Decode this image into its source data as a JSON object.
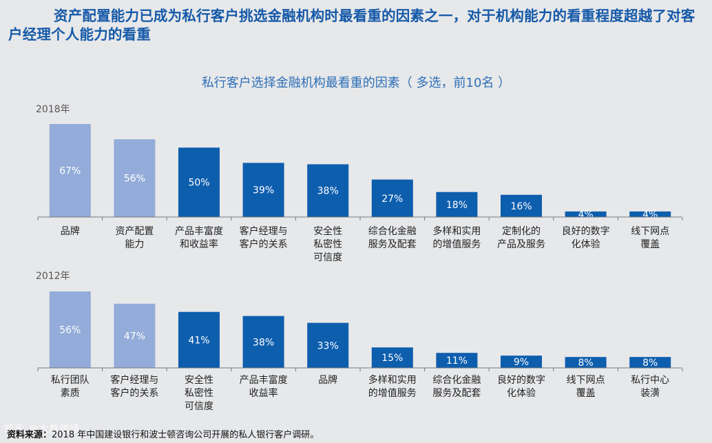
{
  "headline": "资产配置能力已成为私行客户挑选金融机构时最看重的因素之一，对于机构能力的看重程度超越了对客户经理个人能力的看重",
  "colors": {
    "light_bar": "#93acd9",
    "dark_bar": "#0e5eae",
    "title_blue": "#1559a8"
  },
  "chart_data": [
    {
      "type": "bar",
      "title": "私行客户选择金融机构最看重的因素（ 多选，前10名 ）",
      "panel_label": "2018年",
      "categories": [
        [
          "品牌"
        ],
        [
          "资产配置",
          "能力"
        ],
        [
          "产品丰富度",
          "和收益率"
        ],
        [
          "客户经理与",
          "客户的关系"
        ],
        [
          "安全性",
          "私密性",
          "可信度"
        ],
        [
          "综合化金融",
          "服务及配套"
        ],
        [
          "多样和实用",
          "的增值服务"
        ],
        [
          "定制化的",
          "产品及服务"
        ],
        [
          "良好的数字",
          "化体验"
        ],
        [
          "线下网点",
          "覆盖"
        ]
      ],
      "values": [
        67,
        56,
        50,
        39,
        38,
        27,
        18,
        16,
        4,
        4
      ],
      "value_labels": [
        "67%",
        "56%",
        "50%",
        "39%",
        "38%",
        "27%",
        "18%",
        "16%",
        "4%",
        "4%"
      ],
      "highlight_count": 2,
      "ylim": [
        0,
        70
      ]
    },
    {
      "type": "bar",
      "panel_label": "2012年",
      "categories": [
        [
          "私行团队",
          "素质"
        ],
        [
          "客户经理与",
          "客户的关系"
        ],
        [
          "安全性",
          "私密性",
          "可信度"
        ],
        [
          "产品丰富度",
          "收益率"
        ],
        [
          "品牌"
        ],
        [
          "多样和实用",
          "的增值服务"
        ],
        [
          "综合化金融",
          "服务及配套"
        ],
        [
          "良好的数字",
          "化体验"
        ],
        [
          "线下网点",
          "覆盖"
        ],
        [
          "私行中心",
          "装潢"
        ]
      ],
      "values": [
        56,
        47,
        41,
        38,
        33,
        15,
        11,
        9,
        8,
        8
      ],
      "value_labels": [
        "56%",
        "47%",
        "41%",
        "38%",
        "33%",
        "15%",
        "11%",
        "9%",
        "8%",
        "8%"
      ],
      "highlight_count": 2,
      "ylim": [
        0,
        57
      ]
    }
  ],
  "source_label": "资料来源：",
  "source_text": "2018 年中国建设银行和波士顿咨询公司开展的私人银行客户调研。",
  "watermark": "知乎 @大数跨境"
}
